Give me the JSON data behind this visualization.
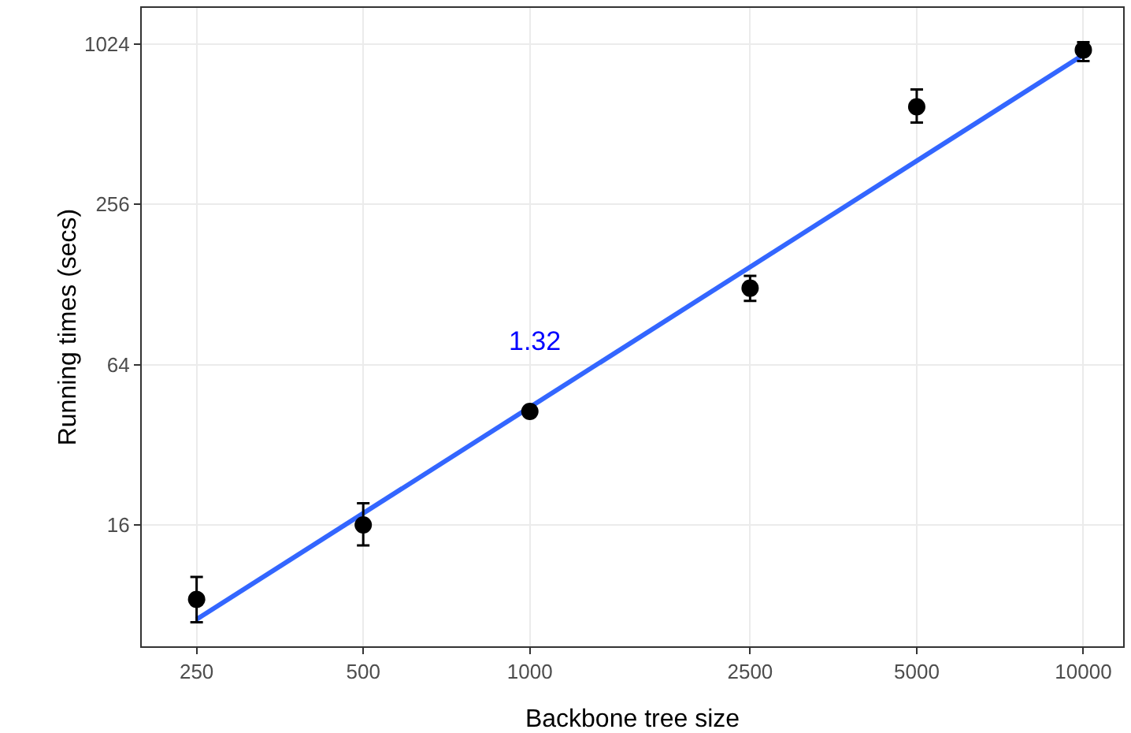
{
  "chart_data": {
    "type": "scatter",
    "xlabel": "Backbone tree size",
    "ylabel": "Running times (secs)",
    "x": [
      250,
      500,
      1000,
      2500,
      5000,
      10000
    ],
    "series": [
      {
        "color": "#000000",
        "marker": "circle",
        "values": [
          8.4,
          16,
          42.7,
          124,
          595,
          973
        ],
        "errors": [
          [
            6.9,
            10.2
          ],
          [
            13.4,
            19.3
          ],
          [
            41,
            44
          ],
          [
            111,
            138
          ],
          [
            519,
            692
          ],
          [
            884,
            1040
          ]
        ]
      },
      {
        "type": "line",
        "color": "#3366ff",
        "x": [
          250,
          10000
        ],
        "values": [
          7.07,
          933
        ]
      }
    ],
    "annotations": [
      "1.32"
    ],
    "log": "xy",
    "xlim": [
      199,
      11800
    ],
    "ylim": [
      5.6,
      1400
    ],
    "xticks": [
      250,
      500,
      1000,
      2500,
      5000,
      10000
    ],
    "yticks": [
      16,
      64,
      256,
      1024
    ],
    "grid": true
  }
}
